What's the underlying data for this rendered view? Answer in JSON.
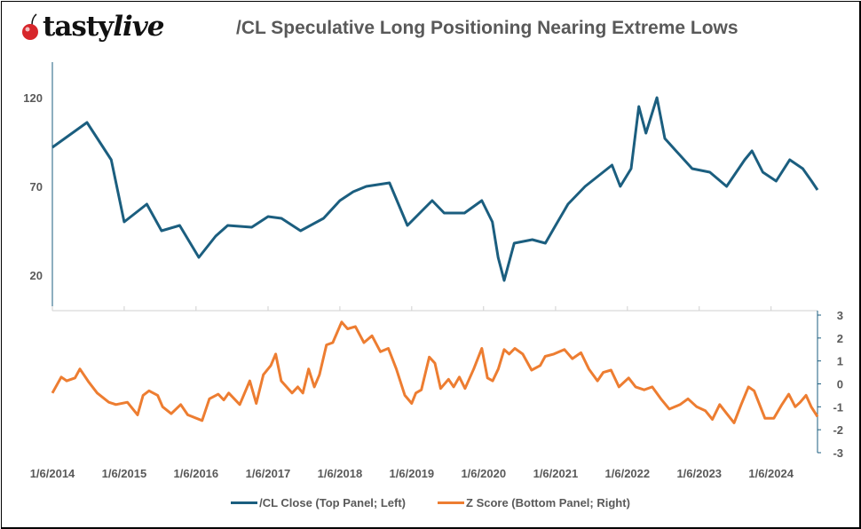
{
  "header": {
    "logo_text": "tastylive",
    "title": "/CL Speculative Long Positioning Nearing Extreme Lows"
  },
  "colors": {
    "price": "#1B5E7F",
    "zscore": "#ED7D31",
    "logo_cherry": "#D7262B",
    "axis": "#1B5E7F"
  },
  "chart_data": {
    "type": "line",
    "title": "/CL Speculative Long Positioning Nearing Extreme Lows",
    "x_range": [
      "2014-01-06",
      "2024-08-29"
    ],
    "x_ticks": [
      "1/6/2014",
      "1/6/2015",
      "1/6/2016",
      "1/6/2017",
      "1/6/2018",
      "1/6/2019",
      "1/6/2020",
      "1/6/2021",
      "1/6/2022",
      "1/6/2023",
      "1/6/2024"
    ],
    "x_tick_dates": [
      "2014-01-06",
      "2015-01-06",
      "2016-01-06",
      "2017-01-06",
      "2018-01-06",
      "2019-01-06",
      "2020-01-06",
      "2021-01-06",
      "2022-01-06",
      "2023-01-06",
      "2024-01-06"
    ],
    "left_axis": {
      "ylim": [
        0,
        140
      ],
      "ticks": [
        "120",
        "70",
        "20"
      ],
      "tick_values": [
        120,
        70,
        20
      ]
    },
    "right_axis": {
      "ylim": [
        -3,
        3
      ],
      "ticks": [
        "3",
        "2",
        "1",
        "0",
        "-1",
        "-2",
        "-3"
      ],
      "tick_values": [
        3,
        2,
        1,
        0,
        -1,
        -2,
        -3
      ]
    },
    "legend_placement": "bottom",
    "series": [
      {
        "name": "/CL Close (Top Panel; Left)",
        "panel": "top",
        "axis": "left",
        "points": [
          [
            "2014-01-06",
            92
          ],
          [
            "2014-07-01",
            106
          ],
          [
            "2014-11-01",
            85
          ],
          [
            "2015-01-06",
            50
          ],
          [
            "2015-05-01",
            60
          ],
          [
            "2015-07-15",
            45
          ],
          [
            "2015-10-15",
            48
          ],
          [
            "2016-01-20",
            30
          ],
          [
            "2016-04-15",
            42
          ],
          [
            "2016-06-15",
            48
          ],
          [
            "2016-10-15",
            47
          ],
          [
            "2017-01-06",
            53
          ],
          [
            "2017-03-15",
            52
          ],
          [
            "2017-06-20",
            45
          ],
          [
            "2017-10-15",
            52
          ],
          [
            "2018-01-06",
            62
          ],
          [
            "2018-03-15",
            67
          ],
          [
            "2018-05-20",
            70
          ],
          [
            "2018-09-15",
            72
          ],
          [
            "2018-12-15",
            48
          ],
          [
            "2019-03-15",
            58
          ],
          [
            "2019-04-20",
            62
          ],
          [
            "2019-06-20",
            55
          ],
          [
            "2019-10-01",
            55
          ],
          [
            "2019-12-28",
            62
          ],
          [
            "2020-02-20",
            50
          ],
          [
            "2020-03-20",
            30
          ],
          [
            "2020-04-20",
            17
          ],
          [
            "2020-06-10",
            38
          ],
          [
            "2020-09-10",
            40
          ],
          [
            "2020-11-15",
            38
          ],
          [
            "2021-01-06",
            48
          ],
          [
            "2021-03-10",
            60
          ],
          [
            "2021-06-05",
            70
          ],
          [
            "2021-10-20",
            82
          ],
          [
            "2021-12-01",
            70
          ],
          [
            "2022-01-25",
            80
          ],
          [
            "2022-03-05",
            115
          ],
          [
            "2022-04-10",
            100
          ],
          [
            "2022-06-05",
            120
          ],
          [
            "2022-07-15",
            97
          ],
          [
            "2022-09-10",
            90
          ],
          [
            "2022-12-01",
            80
          ],
          [
            "2023-03-01",
            78
          ],
          [
            "2023-05-25",
            70
          ],
          [
            "2023-08-25",
            85
          ],
          [
            "2023-10-01",
            90
          ],
          [
            "2023-11-25",
            78
          ],
          [
            "2024-02-01",
            73
          ],
          [
            "2024-04-10",
            85
          ],
          [
            "2024-06-15",
            80
          ],
          [
            "2024-07-30",
            73
          ],
          [
            "2024-08-29",
            68
          ]
        ]
      },
      {
        "name": "Z Score (Bottom Panel; Right)",
        "panel": "bottom",
        "axis": "right",
        "points": [
          [
            "2014-01-06",
            -0.4
          ],
          [
            "2014-02-20",
            0.3
          ],
          [
            "2014-03-20",
            0.13
          ],
          [
            "2014-05-01",
            0.26
          ],
          [
            "2014-05-26",
            0.65
          ],
          [
            "2014-07-08",
            0.1
          ],
          [
            "2014-08-22",
            -0.4
          ],
          [
            "2014-10-20",
            -0.8
          ],
          [
            "2014-11-25",
            -0.9
          ],
          [
            "2015-01-22",
            -0.8
          ],
          [
            "2015-03-15",
            -1.35
          ],
          [
            "2015-04-12",
            -0.5
          ],
          [
            "2015-05-12",
            -0.3
          ],
          [
            "2015-06-25",
            -0.5
          ],
          [
            "2015-07-20",
            -1.0
          ],
          [
            "2015-09-02",
            -1.3
          ],
          [
            "2015-10-20",
            -0.9
          ],
          [
            "2015-11-25",
            -1.35
          ],
          [
            "2016-02-06",
            -1.6
          ],
          [
            "2016-03-14",
            -0.65
          ],
          [
            "2016-04-28",
            -0.45
          ],
          [
            "2016-05-26",
            -0.7
          ],
          [
            "2016-06-20",
            -0.4
          ],
          [
            "2016-08-15",
            -0.9
          ],
          [
            "2016-10-05",
            0.13
          ],
          [
            "2016-11-07",
            -0.85
          ],
          [
            "2016-12-13",
            0.4
          ],
          [
            "2017-01-20",
            0.8
          ],
          [
            "2017-02-14",
            1.3
          ],
          [
            "2017-03-14",
            0.13
          ],
          [
            "2017-05-08",
            -0.4
          ],
          [
            "2017-06-06",
            -0.13
          ],
          [
            "2017-07-02",
            -0.4
          ],
          [
            "2017-07-31",
            0.65
          ],
          [
            "2017-08-29",
            -0.13
          ],
          [
            "2017-09-24",
            0.4
          ],
          [
            "2017-10-30",
            1.7
          ],
          [
            "2017-12-01",
            1.8
          ],
          [
            "2018-01-15",
            2.7
          ],
          [
            "2018-02-14",
            2.4
          ],
          [
            "2018-03-26",
            2.5
          ],
          [
            "2018-05-08",
            1.8
          ],
          [
            "2018-06-18",
            2.1
          ],
          [
            "2018-07-31",
            1.4
          ],
          [
            "2018-09-09",
            1.55
          ],
          [
            "2018-10-20",
            0.65
          ],
          [
            "2018-12-02",
            -0.5
          ],
          [
            "2019-01-06",
            -0.85
          ],
          [
            "2019-01-27",
            -0.4
          ],
          [
            "2019-02-24",
            -0.26
          ],
          [
            "2019-04-05",
            1.17
          ],
          [
            "2019-05-04",
            0.9
          ],
          [
            "2019-06-02",
            -0.2
          ],
          [
            "2019-07-12",
            0.2
          ],
          [
            "2019-08-07",
            -0.13
          ],
          [
            "2019-09-05",
            0.3
          ],
          [
            "2019-10-04",
            -0.2
          ],
          [
            "2019-11-17",
            0.65
          ],
          [
            "2019-12-28",
            1.55
          ],
          [
            "2020-01-26",
            0.26
          ],
          [
            "2020-02-21",
            0.13
          ],
          [
            "2020-03-21",
            0.65
          ],
          [
            "2020-04-20",
            1.5
          ],
          [
            "2020-05-15",
            1.3
          ],
          [
            "2020-06-13",
            1.55
          ],
          [
            "2020-07-23",
            1.3
          ],
          [
            "2020-09-06",
            0.6
          ],
          [
            "2020-10-20",
            0.8
          ],
          [
            "2020-11-14",
            1.2
          ],
          [
            "2020-12-28",
            1.3
          ],
          [
            "2021-02-20",
            1.5
          ],
          [
            "2021-04-01",
            1.1
          ],
          [
            "2021-05-15",
            1.36
          ],
          [
            "2021-06-24",
            0.65
          ],
          [
            "2021-08-07",
            0.13
          ],
          [
            "2021-09-05",
            0.5
          ],
          [
            "2021-10-15",
            0.6
          ],
          [
            "2021-11-24",
            -0.13
          ],
          [
            "2022-01-12",
            0.26
          ],
          [
            "2022-02-17",
            -0.13
          ],
          [
            "2022-04-01",
            -0.26
          ],
          [
            "2022-05-12",
            -0.13
          ],
          [
            "2022-06-25",
            -0.65
          ],
          [
            "2022-08-07",
            -1.1
          ],
          [
            "2022-10-01",
            -0.9
          ],
          [
            "2022-11-10",
            -0.65
          ],
          [
            "2022-12-24",
            -1.0
          ],
          [
            "2023-02-06",
            -1.17
          ],
          [
            "2023-03-14",
            -1.55
          ],
          [
            "2023-04-20",
            -0.9
          ],
          [
            "2023-05-26",
            -1.3
          ],
          [
            "2023-07-02",
            -1.7
          ],
          [
            "2023-08-07",
            -0.9
          ],
          [
            "2023-09-13",
            -0.13
          ],
          [
            "2023-10-12",
            -0.3
          ],
          [
            "2023-12-06",
            -1.5
          ],
          [
            "2024-01-20",
            -1.5
          ],
          [
            "2024-03-01",
            -0.9
          ],
          [
            "2024-04-05",
            -0.45
          ],
          [
            "2024-05-08",
            -1.0
          ],
          [
            "2024-06-02",
            -0.8
          ],
          [
            "2024-07-02",
            -0.5
          ],
          [
            "2024-07-28",
            -1.0
          ],
          [
            "2024-08-29",
            -1.43
          ]
        ]
      }
    ]
  }
}
